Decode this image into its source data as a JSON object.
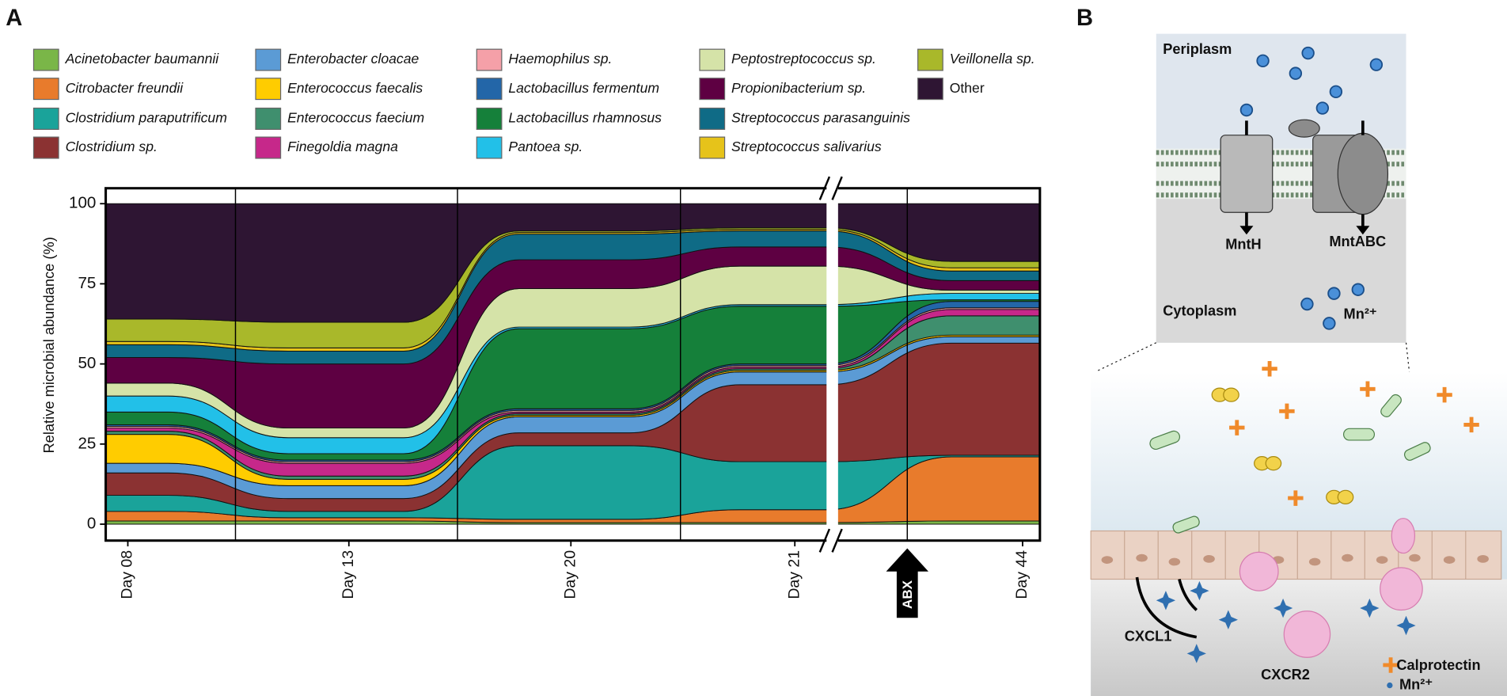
{
  "panels": [
    "A",
    "B"
  ],
  "chart_data": {
    "type": "alluvial",
    "ylabel": "Relative microbial abundance (%)",
    "categories": [
      "Day 08",
      "Day 13",
      "Day 20",
      "Day 21",
      "Day 44"
    ],
    "ylim": [
      0,
      100
    ],
    "yticks": [
      0,
      25,
      50,
      75,
      100
    ],
    "annotations": [
      "ABX"
    ],
    "series": [
      {
        "name": "Acinetobacter baumannii",
        "color": "#7ab648",
        "values": [
          1,
          1,
          0.5,
          0.5,
          1
        ]
      },
      {
        "name": "Citrobacter freundii",
        "color": "#e87b2c",
        "values": [
          3,
          1,
          1,
          4,
          20
        ]
      },
      {
        "name": "Clostridium paraputrificum",
        "color": "#1aa39a",
        "values": [
          5,
          2,
          23,
          15,
          0.5
        ]
      },
      {
        "name": "Clostridium sp.",
        "color": "#8b3232",
        "values": [
          7,
          4,
          4,
          24,
          35
        ]
      },
      {
        "name": "Enterobacter cloacae",
        "color": "#5b9bd5",
        "values": [
          3,
          4,
          5,
          4,
          2
        ]
      },
      {
        "name": "Enterococcus faecalis",
        "color": "#ffcc00",
        "values": [
          9,
          2,
          0.5,
          0.5,
          0.5
        ]
      },
      {
        "name": "Enterococcus faecium",
        "color": "#3f8f6e",
        "values": [
          1,
          1,
          0.5,
          0.5,
          6
        ]
      },
      {
        "name": "Finegoldia magna",
        "color": "#c6288a",
        "values": [
          1,
          4,
          0.5,
          0.5,
          2
        ]
      },
      {
        "name": "Haemophilus sp.",
        "color": "#f5a0a8",
        "values": [
          0.5,
          0.5,
          0.5,
          0.5,
          0.5
        ]
      },
      {
        "name": "Lactobacillus fermentum",
        "color": "#2366a8",
        "values": [
          0.5,
          0.5,
          0.5,
          0.5,
          2
        ]
      },
      {
        "name": "Lactobacillus rhamnosus",
        "color": "#15803a",
        "values": [
          4,
          2,
          25,
          18,
          0.5
        ]
      },
      {
        "name": "Pantoea sp.",
        "color": "#22c0e8",
        "values": [
          5,
          5,
          0.5,
          0.5,
          2
        ]
      },
      {
        "name": "Peptostreptococcus sp.",
        "color": "#d5e3a8",
        "values": [
          4,
          3,
          12,
          12,
          1
        ]
      },
      {
        "name": "Propionibacterium sp.",
        "color": "#5e0042",
        "values": [
          8,
          20,
          9,
          6,
          3
        ]
      },
      {
        "name": "Streptococcus parasanguinis",
        "color": "#0f6b86",
        "values": [
          4,
          4,
          8,
          5,
          3
        ]
      },
      {
        "name": "Streptococcus salivarius",
        "color": "#e6c31a",
        "values": [
          1,
          1,
          0.5,
          0.5,
          1
        ]
      },
      {
        "name": "Veillonella sp.",
        "color": "#a9b82a",
        "values": [
          7,
          8,
          0.5,
          0.5,
          2
        ]
      },
      {
        "name": "Other",
        "color": "#2e1533",
        "values": [
          36,
          37,
          8.5,
          7.5,
          18
        ]
      }
    ]
  },
  "diagram": {
    "periplasm": "Periplasm",
    "cytoplasm": "Cytoplasm",
    "mnth": "MntH",
    "mntabc": "MntABC",
    "mn_ion": "Mn²⁺",
    "cxcl1": "CXCL1",
    "cxcr2": "CXCR2",
    "calprotectin": "Calprotectin",
    "legend_mn": "Mn²⁺"
  }
}
